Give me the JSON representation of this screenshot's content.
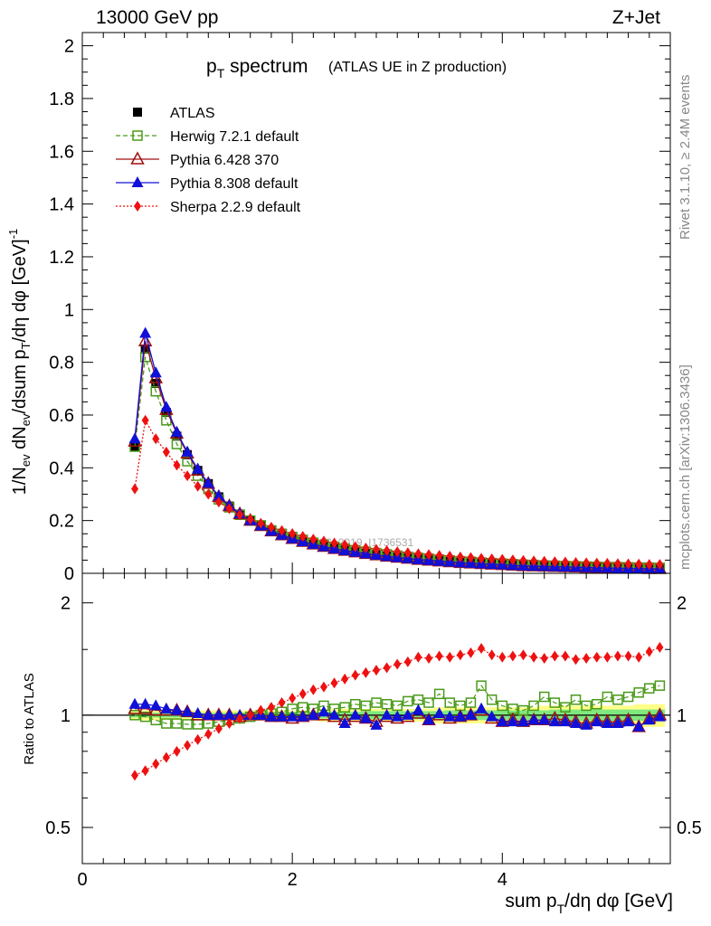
{
  "header": {
    "energy": "13000 GeV pp",
    "process": "Z+Jet"
  },
  "side": {
    "rivet": "Rivet 3.1.10, ≥ 2.4M events",
    "source": "mcplots.cern.ch [arXiv:1306.3436]"
  },
  "watermark": "ATLAS_2019_I1736531",
  "chart_data": [
    {
      "type": "line",
      "title": "p_T spectrum",
      "title_main": "p",
      "title_sub": "T",
      "title_rest": " spectrum",
      "subtitle": "(ATLAS UE in Z production)",
      "ylabel": "1/N_ev dN_ev/dsum p_T/dη dφ [GeV]^-1",
      "xlim": [
        0,
        5.6
      ],
      "ylim": [
        0,
        2.05
      ],
      "yticks": [
        0,
        0.2,
        0.4,
        0.6,
        0.8,
        1,
        1.2,
        1.4,
        1.6,
        1.8,
        2
      ],
      "ytick_labels": [
        "0",
        "0.2",
        "0.4",
        "0.6",
        "0.8",
        "1",
        "1.2",
        "1.4",
        "1.6",
        "1.8",
        "2"
      ],
      "legend_position": "top-left",
      "x": [
        0.5,
        0.6,
        0.7,
        0.8,
        0.9,
        1.0,
        1.1,
        1.2,
        1.3,
        1.4,
        1.5,
        1.6,
        1.7,
        1.8,
        1.9,
        2.0,
        2.1,
        2.2,
        2.3,
        2.4,
        2.5,
        2.6,
        2.7,
        2.8,
        2.9,
        3.0,
        3.1,
        3.2,
        3.3,
        3.4,
        3.5,
        3.6,
        3.7,
        3.8,
        3.9,
        4.0,
        4.1,
        4.2,
        4.3,
        4.4,
        4.5,
        4.6,
        4.7,
        4.8,
        4.9,
        5.0,
        5.1,
        5.2,
        5.3,
        5.4,
        5.5
      ],
      "series": [
        {
          "name": "ATLAS",
          "color": "#000000",
          "marker": "square-filled",
          "line": "none",
          "values": [
            0.48,
            0.85,
            0.72,
            0.61,
            0.52,
            0.45,
            0.39,
            0.34,
            0.29,
            0.255,
            0.225,
            0.2,
            0.18,
            0.16,
            0.145,
            0.132,
            0.12,
            0.11,
            0.102,
            0.095,
            0.088,
            0.082,
            0.076,
            0.071,
            0.066,
            0.062,
            0.058,
            0.054,
            0.051,
            0.048,
            0.045,
            0.042,
            0.04,
            0.038,
            0.036,
            0.034,
            0.032,
            0.03,
            0.029,
            0.028,
            0.027,
            0.026,
            0.025,
            0.024,
            0.023,
            0.022,
            0.021,
            0.02,
            0.02,
            0.019,
            0.018
          ]
        },
        {
          "name": "Herwig 7.2.1 default",
          "color": "#4a9a1a",
          "marker": "square-open",
          "line": "dashed",
          "values": [
            0.48,
            0.82,
            0.69,
            0.58,
            0.49,
            0.425,
            0.37,
            0.32,
            0.28,
            0.25,
            0.222,
            0.2,
            0.182,
            0.163,
            0.15,
            0.138,
            0.127,
            0.116,
            0.108,
            0.101,
            0.094,
            0.088,
            0.082,
            0.077,
            0.072,
            0.067,
            0.063,
            0.059,
            0.056,
            0.052,
            0.049,
            0.046,
            0.044,
            0.041,
            0.039,
            0.037,
            0.035,
            0.033,
            0.032,
            0.03,
            0.029,
            0.028,
            0.027,
            0.026,
            0.025,
            0.024,
            0.024,
            0.023,
            0.022,
            0.022,
            0.021
          ]
        },
        {
          "name": "Pythia 6.428 370",
          "color": "#a01010",
          "marker": "triangle-open",
          "line": "solid",
          "values": [
            0.5,
            0.88,
            0.74,
            0.62,
            0.53,
            0.455,
            0.39,
            0.34,
            0.29,
            0.255,
            0.225,
            0.2,
            0.18,
            0.16,
            0.145,
            0.131,
            0.12,
            0.11,
            0.101,
            0.093,
            0.086,
            0.08,
            0.074,
            0.069,
            0.064,
            0.06,
            0.056,
            0.052,
            0.049,
            0.046,
            0.043,
            0.04,
            0.038,
            0.036,
            0.034,
            0.032,
            0.03,
            0.028,
            0.027,
            0.026,
            0.025,
            0.024,
            0.023,
            0.022,
            0.021,
            0.02,
            0.019,
            0.018,
            0.018,
            0.017,
            0.017
          ]
        },
        {
          "name": "Pythia 8.308 default",
          "color": "#1010d8",
          "marker": "triangle-filled",
          "line": "solid",
          "values": [
            0.51,
            0.91,
            0.76,
            0.63,
            0.535,
            0.46,
            0.395,
            0.342,
            0.293,
            0.256,
            0.226,
            0.2,
            0.18,
            0.16,
            0.145,
            0.131,
            0.12,
            0.11,
            0.101,
            0.093,
            0.086,
            0.08,
            0.074,
            0.069,
            0.064,
            0.06,
            0.056,
            0.052,
            0.049,
            0.046,
            0.043,
            0.04,
            0.038,
            0.036,
            0.034,
            0.032,
            0.03,
            0.028,
            0.027,
            0.026,
            0.025,
            0.024,
            0.023,
            0.022,
            0.021,
            0.02,
            0.019,
            0.018,
            0.018,
            0.017,
            0.017
          ]
        },
        {
          "name": "Sherpa 2.2.9 default",
          "color": "#ee1111",
          "marker": "diamond-filled",
          "line": "dotted",
          "values": [
            0.32,
            0.58,
            0.51,
            0.46,
            0.41,
            0.37,
            0.33,
            0.3,
            0.27,
            0.245,
            0.222,
            0.205,
            0.19,
            0.175,
            0.162,
            0.151,
            0.14,
            0.13,
            0.122,
            0.115,
            0.108,
            0.101,
            0.096,
            0.091,
            0.086,
            0.082,
            0.078,
            0.074,
            0.071,
            0.068,
            0.065,
            0.062,
            0.06,
            0.057,
            0.055,
            0.053,
            0.051,
            0.049,
            0.047,
            0.046,
            0.044,
            0.043,
            0.041,
            0.04,
            0.039,
            0.038,
            0.037,
            0.036,
            0.035,
            0.034,
            0.034
          ]
        }
      ]
    },
    {
      "type": "line",
      "title": "",
      "ylabel": "Ratio to ATLAS",
      "xlabel": "sum p_T/dη dφ [GeV]",
      "xlabel_main": "sum p",
      "xlabel_sub": "T",
      "xlabel_rest": "/dη dφ [GeV]",
      "xlim": [
        0,
        5.6
      ],
      "xticks": [
        0,
        2,
        4
      ],
      "xtick_labels": [
        "0",
        "2",
        "4"
      ],
      "ylim": [
        0.4,
        2.4
      ],
      "yscale": "log",
      "yticks": [
        0.5,
        1,
        2
      ],
      "ytick_labels": [
        "0.5",
        "1",
        "2"
      ],
      "x": [
        0.5,
        0.6,
        0.7,
        0.8,
        0.9,
        1.0,
        1.1,
        1.2,
        1.3,
        1.4,
        1.5,
        1.6,
        1.7,
        1.8,
        1.9,
        2.0,
        2.1,
        2.2,
        2.3,
        2.4,
        2.5,
        2.6,
        2.7,
        2.8,
        2.9,
        3.0,
        3.1,
        3.2,
        3.3,
        3.4,
        3.5,
        3.6,
        3.7,
        3.8,
        3.9,
        4.0,
        4.1,
        4.2,
        4.3,
        4.4,
        4.5,
        4.6,
        4.7,
        4.8,
        4.9,
        5.0,
        5.1,
        5.2,
        5.3,
        5.4,
        5.5
      ],
      "band_outer": [
        0.03,
        0.03,
        0.03,
        0.03,
        0.03,
        0.03,
        0.03,
        0.03,
        0.03,
        0.03,
        0.03,
        0.03,
        0.03,
        0.03,
        0.03,
        0.03,
        0.03,
        0.03,
        0.04,
        0.04,
        0.04,
        0.04,
        0.04,
        0.04,
        0.04,
        0.04,
        0.04,
        0.04,
        0.04,
        0.05,
        0.05,
        0.05,
        0.05,
        0.05,
        0.05,
        0.05,
        0.05,
        0.05,
        0.05,
        0.06,
        0.06,
        0.06,
        0.06,
        0.06,
        0.06,
        0.06,
        0.06,
        0.06,
        0.07,
        0.07,
        0.07
      ],
      "band_inner": [
        0.015,
        0.015,
        0.015,
        0.015,
        0.015,
        0.015,
        0.015,
        0.015,
        0.015,
        0.015,
        0.015,
        0.015,
        0.015,
        0.02,
        0.02,
        0.02,
        0.02,
        0.02,
        0.02,
        0.02,
        0.02,
        0.02,
        0.025,
        0.025,
        0.025,
        0.025,
        0.025,
        0.025,
        0.025,
        0.025,
        0.03,
        0.03,
        0.03,
        0.03,
        0.03,
        0.03,
        0.03,
        0.03,
        0.03,
        0.03,
        0.035,
        0.035,
        0.035,
        0.035,
        0.035,
        0.035,
        0.035,
        0.035,
        0.035,
        0.035,
        0.035
      ],
      "series": [
        {
          "name": "Herwig 7.2.1 default",
          "color": "#4a9a1a",
          "marker": "square-open",
          "line": "dashed",
          "values": [
            1.0,
            0.99,
            0.97,
            0.95,
            0.95,
            0.945,
            0.945,
            0.95,
            0.96,
            0.97,
            0.98,
            0.99,
            1.0,
            1.01,
            1.02,
            1.04,
            1.05,
            1.04,
            1.06,
            1.04,
            1.05,
            1.07,
            1.06,
            1.08,
            1.07,
            1.06,
            1.09,
            1.1,
            1.08,
            1.14,
            1.08,
            1.06,
            1.08,
            1.2,
            1.1,
            1.06,
            1.04,
            1.03,
            1.06,
            1.12,
            1.08,
            1.05,
            1.1,
            1.06,
            1.07,
            1.12,
            1.1,
            1.12,
            1.15,
            1.18,
            1.2
          ]
        },
        {
          "name": "Pythia 6.428 370",
          "color": "#a01010",
          "marker": "triangle-open",
          "line": "solid",
          "values": [
            1.04,
            1.04,
            1.03,
            1.03,
            1.03,
            1.02,
            1.0,
            1.0,
            1.0,
            1.0,
            0.99,
            1.0,
            1.0,
            0.99,
            0.99,
            0.98,
            0.99,
            1.0,
            1.0,
            0.99,
            0.97,
            0.99,
            0.98,
            0.96,
            0.99,
            0.98,
            0.99,
            1.01,
            0.97,
            1.0,
            0.98,
            0.99,
            1.0,
            1.03,
            0.98,
            0.96,
            0.97,
            0.96,
            0.97,
            0.97,
            0.98,
            0.97,
            0.96,
            0.95,
            0.97,
            0.96,
            0.96,
            0.97,
            0.93,
            0.98,
            1.0
          ]
        },
        {
          "name": "Pythia 8.308 default",
          "color": "#1010d8",
          "marker": "triangle-filled",
          "line": "solid",
          "values": [
            1.07,
            1.07,
            1.06,
            1.04,
            1.03,
            1.02,
            1.01,
            1.0,
            1.0,
            1.0,
            1.0,
            1.0,
            1.0,
            0.99,
            0.99,
            0.99,
            0.99,
            1.0,
            1.02,
            1.0,
            0.95,
            1.0,
            0.98,
            0.94,
            1.0,
            0.99,
            1.0,
            1.03,
            0.97,
            1.01,
            0.99,
            0.99,
            1.0,
            1.04,
            0.99,
            0.96,
            0.96,
            0.96,
            0.97,
            0.97,
            0.96,
            0.96,
            0.95,
            0.94,
            0.96,
            0.95,
            0.95,
            0.96,
            0.93,
            0.97,
            0.99
          ]
        },
        {
          "name": "Sherpa 2.2.9 default",
          "color": "#ee1111",
          "marker": "diamond-filled",
          "line": "dotted",
          "values": [
            0.69,
            0.71,
            0.74,
            0.77,
            0.8,
            0.83,
            0.86,
            0.89,
            0.92,
            0.95,
            0.98,
            1.0,
            1.03,
            1.05,
            1.08,
            1.11,
            1.14,
            1.17,
            1.19,
            1.22,
            1.25,
            1.28,
            1.3,
            1.32,
            1.34,
            1.37,
            1.39,
            1.43,
            1.42,
            1.44,
            1.43,
            1.45,
            1.47,
            1.51,
            1.45,
            1.43,
            1.44,
            1.45,
            1.43,
            1.42,
            1.44,
            1.44,
            1.41,
            1.42,
            1.43,
            1.43,
            1.44,
            1.44,
            1.43,
            1.48,
            1.52
          ]
        }
      ]
    }
  ]
}
